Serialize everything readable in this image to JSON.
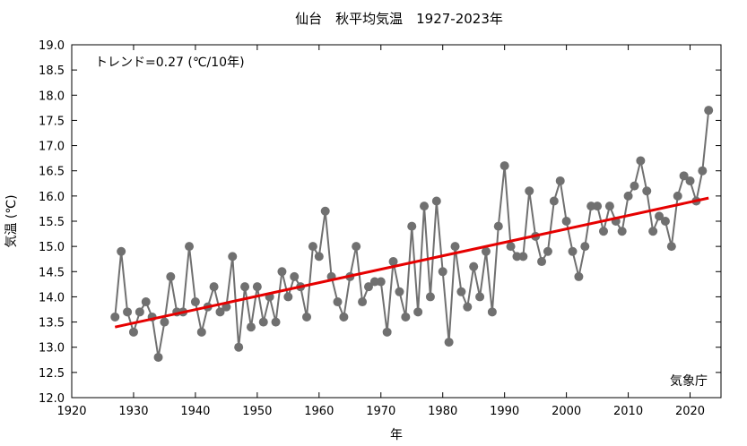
{
  "chart_data": {
    "type": "line",
    "title": "仙台　秋平均気温　1927-2023年",
    "xlabel": "年",
    "ylabel": "気温 (℃)",
    "xlim": [
      1920,
      2025
    ],
    "ylim": [
      12.0,
      19.0
    ],
    "xticks": [
      1920,
      1930,
      1940,
      1950,
      1960,
      1970,
      1980,
      1990,
      2000,
      2010,
      2020
    ],
    "yticks": [
      "12.0",
      "12.5",
      "13.0",
      "13.5",
      "14.0",
      "14.5",
      "15.0",
      "15.5",
      "16.0",
      "16.5",
      "17.0",
      "17.5",
      "18.0",
      "18.5",
      "19.0"
    ],
    "annotation": "トレンド=0.27 (℃/10年)",
    "source": "気象庁",
    "grid": false,
    "series": [
      {
        "color": "#707070",
        "x": [
          1927,
          1928,
          1929,
          1930,
          1931,
          1932,
          1933,
          1934,
          1935,
          1936,
          1937,
          1938,
          1939,
          1940,
          1941,
          1942,
          1943,
          1944,
          1945,
          1946,
          1947,
          1948,
          1949,
          1950,
          1951,
          1952,
          1953,
          1954,
          1955,
          1956,
          1957,
          1958,
          1959,
          1960,
          1961,
          1962,
          1963,
          1964,
          1965,
          1966,
          1967,
          1968,
          1969,
          1970,
          1971,
          1972,
          1973,
          1974,
          1975,
          1976,
          1977,
          1978,
          1979,
          1980,
          1981,
          1982,
          1983,
          1984,
          1985,
          1986,
          1987,
          1988,
          1989,
          1990,
          1991,
          1992,
          1993,
          1994,
          1995,
          1996,
          1997,
          1998,
          1999,
          2000,
          2001,
          2002,
          2003,
          2004,
          2005,
          2006,
          2007,
          2008,
          2009,
          2010,
          2011,
          2012,
          2013,
          2014,
          2015,
          2016,
          2017,
          2018,
          2019,
          2020,
          2021,
          2022,
          2023
        ],
        "y": [
          13.6,
          14.9,
          13.7,
          13.3,
          13.7,
          13.9,
          13.6,
          12.8,
          13.5,
          14.4,
          13.7,
          13.7,
          15.0,
          13.9,
          13.3,
          13.8,
          14.2,
          13.7,
          13.8,
          14.8,
          13.0,
          14.2,
          13.4,
          14.2,
          13.5,
          14.0,
          13.5,
          14.5,
          14.0,
          14.4,
          14.2,
          13.6,
          15.0,
          14.8,
          15.7,
          14.4,
          13.9,
          13.6,
          14.4,
          15.0,
          13.9,
          14.2,
          14.3,
          14.3,
          13.3,
          14.7,
          14.1,
          13.6,
          15.4,
          13.7,
          15.8,
          14.0,
          15.9,
          14.5,
          13.1,
          15.0,
          14.1,
          13.8,
          14.6,
          14.0,
          14.9,
          13.7,
          15.4,
          16.6,
          15.0,
          14.8,
          14.8,
          16.1,
          15.2,
          14.7,
          14.9,
          15.9,
          16.3,
          15.5,
          14.9,
          14.4,
          15.0,
          15.8,
          15.8,
          15.3,
          15.8,
          15.5,
          15.3,
          16.0,
          16.2,
          16.7,
          16.1,
          15.3,
          15.6,
          15.5,
          15.0,
          16.0,
          16.4,
          16.3,
          15.9,
          16.5,
          17.7
        ]
      }
    ],
    "trend": {
      "color": "#e60000",
      "x": [
        1927,
        2023
      ],
      "y": [
        13.4,
        15.96
      ]
    }
  }
}
